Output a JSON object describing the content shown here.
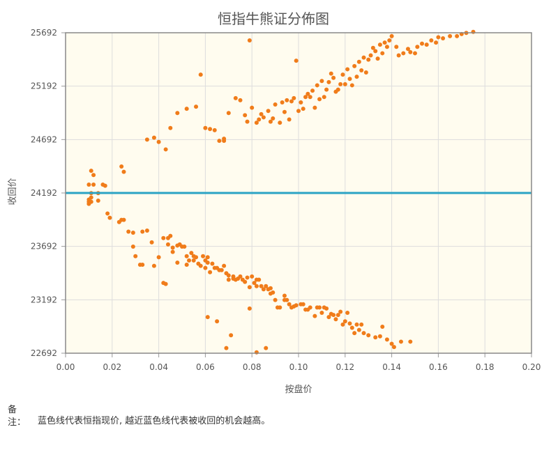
{
  "chart_data": {
    "type": "scatter",
    "title": "恒指牛熊证分佈图",
    "xlabel": "按盘价",
    "ylabel": "收回价",
    "xlim": [
      0.0,
      0.2
    ],
    "ylim": [
      22692,
      25692
    ],
    "x_ticks": [
      "0.00",
      "0.02",
      "0.04",
      "0.06",
      "0.08",
      "0.10",
      "0.12",
      "0.14",
      "0.16",
      "0.18",
      "0.20"
    ],
    "y_ticks": [
      "22692",
      "23192",
      "23692",
      "24192",
      "24692",
      "25192",
      "25692"
    ],
    "grid": true,
    "colors": {
      "points": "#f07c1a",
      "reference_line": "#2aa3c4",
      "plot_bg": "#fffcef",
      "grid": "#dddddd"
    },
    "reference_line": {
      "y": 24192,
      "description_ref": "note.text"
    },
    "series": [
      {
        "points": [
          [
            0.01,
            24130
          ],
          [
            0.01,
            24110
          ],
          [
            0.01,
            24090
          ],
          [
            0.011,
            24150
          ],
          [
            0.011,
            24190
          ],
          [
            0.011,
            24110
          ],
          [
            0.012,
            24270
          ],
          [
            0.01,
            24270
          ],
          [
            0.011,
            24400
          ],
          [
            0.012,
            24360
          ],
          [
            0.014,
            24190
          ],
          [
            0.014,
            24120
          ],
          [
            0.016,
            24270
          ],
          [
            0.017,
            24260
          ],
          [
            0.018,
            24000
          ],
          [
            0.019,
            23960
          ],
          [
            0.023,
            23920
          ],
          [
            0.024,
            23940
          ],
          [
            0.024,
            24440
          ],
          [
            0.025,
            24390
          ],
          [
            0.025,
            23940
          ],
          [
            0.027,
            23830
          ],
          [
            0.029,
            23820
          ],
          [
            0.029,
            23690
          ],
          [
            0.03,
            23600
          ],
          [
            0.032,
            23520
          ],
          [
            0.033,
            23520
          ],
          [
            0.033,
            23830
          ],
          [
            0.035,
            23840
          ],
          [
            0.037,
            23730
          ],
          [
            0.038,
            23510
          ],
          [
            0.04,
            23590
          ],
          [
            0.042,
            23350
          ],
          [
            0.043,
            23340
          ],
          [
            0.042,
            23770
          ],
          [
            0.044,
            23770
          ],
          [
            0.044,
            23710
          ],
          [
            0.045,
            23790
          ],
          [
            0.046,
            23680
          ],
          [
            0.046,
            23640
          ],
          [
            0.048,
            23540
          ],
          [
            0.048,
            23700
          ],
          [
            0.049,
            23710
          ],
          [
            0.05,
            23690
          ],
          [
            0.051,
            23690
          ],
          [
            0.052,
            23600
          ],
          [
            0.052,
            23520
          ],
          [
            0.053,
            23560
          ],
          [
            0.054,
            23630
          ],
          [
            0.055,
            23560
          ],
          [
            0.055,
            23600
          ],
          [
            0.056,
            23590
          ],
          [
            0.057,
            23530
          ],
          [
            0.058,
            23510
          ],
          [
            0.059,
            23600
          ],
          [
            0.06,
            23560
          ],
          [
            0.06,
            23490
          ],
          [
            0.061,
            23590
          ],
          [
            0.061,
            23540
          ],
          [
            0.062,
            23450
          ],
          [
            0.063,
            23530
          ],
          [
            0.064,
            23490
          ],
          [
            0.065,
            23490
          ],
          [
            0.066,
            23470
          ],
          [
            0.067,
            23470
          ],
          [
            0.068,
            23510
          ],
          [
            0.069,
            23440
          ],
          [
            0.07,
            23420
          ],
          [
            0.07,
            23380
          ],
          [
            0.072,
            23410
          ],
          [
            0.072,
            23390
          ],
          [
            0.073,
            23380
          ],
          [
            0.074,
            23390
          ],
          [
            0.075,
            23410
          ],
          [
            0.076,
            23380
          ],
          [
            0.077,
            23360
          ],
          [
            0.078,
            23400
          ],
          [
            0.079,
            23310
          ],
          [
            0.08,
            23410
          ],
          [
            0.081,
            23350
          ],
          [
            0.082,
            23320
          ],
          [
            0.082,
            23380
          ],
          [
            0.083,
            23380
          ],
          [
            0.084,
            23320
          ],
          [
            0.085,
            23290
          ],
          [
            0.086,
            23320
          ],
          [
            0.087,
            23290
          ],
          [
            0.088,
            23300
          ],
          [
            0.088,
            23250
          ],
          [
            0.089,
            23260
          ],
          [
            0.09,
            23190
          ],
          [
            0.091,
            23120
          ],
          [
            0.092,
            23120
          ],
          [
            0.094,
            23230
          ],
          [
            0.094,
            23190
          ],
          [
            0.095,
            23190
          ],
          [
            0.096,
            23150
          ],
          [
            0.097,
            23120
          ],
          [
            0.098,
            23130
          ],
          [
            0.099,
            23140
          ],
          [
            0.101,
            23150
          ],
          [
            0.102,
            23150
          ],
          [
            0.103,
            23100
          ],
          [
            0.104,
            23100
          ],
          [
            0.105,
            23120
          ],
          [
            0.107,
            23040
          ],
          [
            0.108,
            23120
          ],
          [
            0.109,
            23120
          ],
          [
            0.11,
            23070
          ],
          [
            0.111,
            23120
          ],
          [
            0.112,
            23110
          ],
          [
            0.113,
            23030
          ],
          [
            0.114,
            23060
          ],
          [
            0.115,
            23050
          ],
          [
            0.116,
            23010
          ],
          [
            0.117,
            23050
          ],
          [
            0.118,
            23080
          ],
          [
            0.119,
            22960
          ],
          [
            0.12,
            22990
          ],
          [
            0.121,
            23070
          ],
          [
            0.122,
            22970
          ],
          [
            0.123,
            22930
          ],
          [
            0.124,
            22880
          ],
          [
            0.125,
            22960
          ],
          [
            0.126,
            22910
          ],
          [
            0.127,
            22960
          ],
          [
            0.128,
            22880
          ],
          [
            0.13,
            22860
          ],
          [
            0.133,
            22840
          ],
          [
            0.135,
            22850
          ],
          [
            0.136,
            22940
          ],
          [
            0.138,
            22820
          ],
          [
            0.14,
            22780
          ],
          [
            0.141,
            22750
          ],
          [
            0.144,
            22800
          ],
          [
            0.148,
            22800
          ],
          [
            0.035,
            24692
          ],
          [
            0.038,
            24710
          ],
          [
            0.04,
            24670
          ],
          [
            0.043,
            24600
          ],
          [
            0.045,
            24800
          ],
          [
            0.048,
            24940
          ],
          [
            0.052,
            24980
          ],
          [
            0.056,
            25000
          ],
          [
            0.058,
            25300
          ],
          [
            0.06,
            24800
          ],
          [
            0.062,
            24790
          ],
          [
            0.064,
            24780
          ],
          [
            0.066,
            24680
          ],
          [
            0.068,
            24700
          ],
          [
            0.068,
            24680
          ],
          [
            0.07,
            24940
          ],
          [
            0.073,
            25080
          ],
          [
            0.075,
            25060
          ],
          [
            0.077,
            24920
          ],
          [
            0.078,
            24860
          ],
          [
            0.079,
            25620
          ],
          [
            0.08,
            24990
          ],
          [
            0.082,
            24850
          ],
          [
            0.083,
            24880
          ],
          [
            0.084,
            24930
          ],
          [
            0.085,
            24900
          ],
          [
            0.087,
            24960
          ],
          [
            0.088,
            24860
          ],
          [
            0.089,
            24890
          ],
          [
            0.09,
            25020
          ],
          [
            0.092,
            24850
          ],
          [
            0.093,
            25040
          ],
          [
            0.094,
            24950
          ],
          [
            0.095,
            25060
          ],
          [
            0.096,
            24880
          ],
          [
            0.097,
            25050
          ],
          [
            0.098,
            25080
          ],
          [
            0.099,
            25430
          ],
          [
            0.1,
            24960
          ],
          [
            0.101,
            25040
          ],
          [
            0.102,
            24980
          ],
          [
            0.103,
            25090
          ],
          [
            0.104,
            25120
          ],
          [
            0.105,
            25090
          ],
          [
            0.106,
            25150
          ],
          [
            0.107,
            24990
          ],
          [
            0.108,
            25200
          ],
          [
            0.109,
            25070
          ],
          [
            0.11,
            25240
          ],
          [
            0.111,
            25090
          ],
          [
            0.112,
            25160
          ],
          [
            0.113,
            25230
          ],
          [
            0.114,
            25310
          ],
          [
            0.115,
            25270
          ],
          [
            0.116,
            25140
          ],
          [
            0.117,
            25160
          ],
          [
            0.118,
            25210
          ],
          [
            0.119,
            25300
          ],
          [
            0.12,
            25210
          ],
          [
            0.121,
            25350
          ],
          [
            0.122,
            25260
          ],
          [
            0.123,
            25200
          ],
          [
            0.124,
            25380
          ],
          [
            0.125,
            25280
          ],
          [
            0.126,
            25420
          ],
          [
            0.127,
            25340
          ],
          [
            0.128,
            25460
          ],
          [
            0.129,
            25320
          ],
          [
            0.13,
            25440
          ],
          [
            0.131,
            25480
          ],
          [
            0.132,
            25550
          ],
          [
            0.133,
            25520
          ],
          [
            0.134,
            25450
          ],
          [
            0.135,
            25580
          ],
          [
            0.136,
            25500
          ],
          [
            0.137,
            25600
          ],
          [
            0.138,
            25560
          ],
          [
            0.139,
            25620
          ],
          [
            0.14,
            25660
          ],
          [
            0.142,
            25560
          ],
          [
            0.143,
            25480
          ],
          [
            0.145,
            25500
          ],
          [
            0.147,
            25540
          ],
          [
            0.148,
            25510
          ],
          [
            0.15,
            25500
          ],
          [
            0.151,
            25560
          ],
          [
            0.153,
            25590
          ],
          [
            0.155,
            25580
          ],
          [
            0.157,
            25620
          ],
          [
            0.159,
            25600
          ],
          [
            0.16,
            25650
          ],
          [
            0.162,
            25640
          ],
          [
            0.165,
            25660
          ],
          [
            0.168,
            25660
          ],
          [
            0.17,
            25680
          ],
          [
            0.172,
            25690
          ],
          [
            0.175,
            25700
          ],
          [
            0.061,
            23030
          ],
          [
            0.065,
            22990
          ],
          [
            0.069,
            22740
          ],
          [
            0.071,
            22860
          ],
          [
            0.079,
            23110
          ],
          [
            0.082,
            22700
          ],
          [
            0.086,
            22740
          ]
        ]
      }
    ]
  },
  "note": {
    "label": "备注：",
    "text": "蓝色线代表恒指现价, 越近蓝色线代表被收回的机会越高。"
  }
}
